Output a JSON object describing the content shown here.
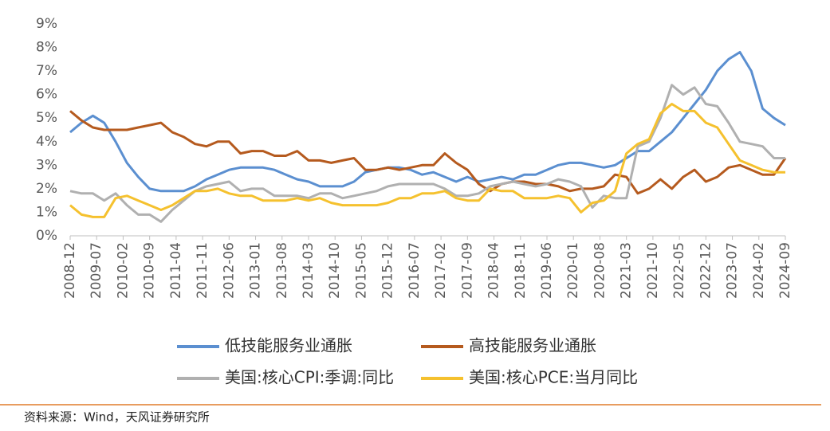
{
  "chart_data": {
    "type": "line",
    "x": [
      "2008-12",
      "2009-03",
      "2009-06",
      "2009-09",
      "2009-12",
      "2010-03",
      "2010-06",
      "2010-09",
      "2010-12",
      "2011-03",
      "2011-06",
      "2011-09",
      "2011-12",
      "2012-03",
      "2012-06",
      "2012-09",
      "2012-12",
      "2013-03",
      "2013-06",
      "2013-09",
      "2013-12",
      "2014-03",
      "2014-06",
      "2014-09",
      "2014-12",
      "2015-03",
      "2015-06",
      "2015-09",
      "2015-12",
      "2016-03",
      "2016-06",
      "2016-09",
      "2016-12",
      "2017-03",
      "2017-06",
      "2017-09",
      "2017-12",
      "2018-03",
      "2018-06",
      "2018-09",
      "2018-12",
      "2019-03",
      "2019-06",
      "2019-09",
      "2019-12",
      "2020-03",
      "2020-06",
      "2020-09",
      "2020-12",
      "2021-03",
      "2021-06",
      "2021-09",
      "2021-12",
      "2022-03",
      "2022-06",
      "2022-09",
      "2022-12",
      "2023-03",
      "2023-06",
      "2023-09",
      "2023-12",
      "2024-03",
      "2024-06",
      "2024-09"
    ],
    "series": [
      {
        "name": "低技能服务业通胀",
        "color": "#5b8fd0",
        "values": [
          4.4,
          4.8,
          5.1,
          4.8,
          4.0,
          3.1,
          2.5,
          2.0,
          1.9,
          1.9,
          1.9,
          2.1,
          2.4,
          2.6,
          2.8,
          2.9,
          2.9,
          2.9,
          2.8,
          2.6,
          2.4,
          2.3,
          2.1,
          2.1,
          2.1,
          2.3,
          2.7,
          2.8,
          2.9,
          2.9,
          2.8,
          2.6,
          2.7,
          2.5,
          2.3,
          2.5,
          2.3,
          2.4,
          2.5,
          2.4,
          2.6,
          2.6,
          2.8,
          3.0,
          3.1,
          3.1,
          3.0,
          2.9,
          3.0,
          3.3,
          3.6,
          3.6,
          4.0,
          4.4,
          5.0,
          5.6,
          6.2,
          7.0,
          7.5,
          7.8,
          7.0,
          5.4,
          5.0,
          4.7
        ]
      },
      {
        "name": "高技能服务业通胀",
        "color": "#b55a1e",
        "values": [
          5.3,
          4.9,
          4.6,
          4.5,
          4.5,
          4.5,
          4.6,
          4.7,
          4.8,
          4.4,
          4.2,
          3.9,
          3.8,
          4.0,
          4.0,
          3.5,
          3.6,
          3.6,
          3.4,
          3.4,
          3.6,
          3.2,
          3.2,
          3.1,
          3.2,
          3.3,
          2.8,
          2.8,
          2.9,
          2.8,
          2.9,
          3.0,
          3.0,
          3.5,
          3.1,
          2.8,
          2.2,
          1.9,
          2.2,
          2.3,
          2.3,
          2.2,
          2.2,
          2.1,
          1.9,
          2.0,
          2.0,
          2.1,
          2.6,
          2.5,
          1.8,
          2.0,
          2.4,
          2.0,
          2.5,
          2.8,
          2.3,
          2.5,
          2.9,
          3.0,
          2.8,
          2.6,
          2.6,
          3.3
        ]
      },
      {
        "name": "美国:核心CPI:季调:同比",
        "color": "#b0b0b0",
        "values": [
          1.9,
          1.8,
          1.8,
          1.5,
          1.8,
          1.3,
          0.9,
          0.9,
          0.6,
          1.1,
          1.5,
          1.9,
          2.1,
          2.2,
          2.3,
          1.9,
          2.0,
          2.0,
          1.7,
          1.7,
          1.7,
          1.6,
          1.8,
          1.8,
          1.6,
          1.7,
          1.8,
          1.9,
          2.1,
          2.2,
          2.2,
          2.2,
          2.2,
          2.0,
          1.7,
          1.7,
          1.8,
          2.1,
          2.2,
          2.3,
          2.2,
          2.1,
          2.2,
          2.4,
          2.3,
          2.1,
          1.2,
          1.7,
          1.6,
          1.6,
          3.8,
          4.0,
          5.0,
          6.4,
          6.0,
          6.3,
          5.6,
          5.5,
          4.8,
          4.0,
          3.9,
          3.8,
          3.3,
          3.3
        ]
      },
      {
        "name": "美国:核心PCE:当月同比",
        "color": "#f5c12e",
        "values": [
          1.3,
          0.9,
          0.8,
          0.8,
          1.6,
          1.7,
          1.5,
          1.3,
          1.1,
          1.3,
          1.6,
          1.9,
          1.9,
          2.0,
          1.8,
          1.7,
          1.7,
          1.5,
          1.5,
          1.5,
          1.6,
          1.5,
          1.6,
          1.4,
          1.3,
          1.3,
          1.3,
          1.3,
          1.4,
          1.6,
          1.6,
          1.8,
          1.8,
          1.9,
          1.6,
          1.5,
          1.5,
          2.0,
          1.9,
          1.9,
          1.6,
          1.6,
          1.6,
          1.7,
          1.6,
          1.0,
          1.4,
          1.5,
          1.9,
          3.5,
          3.9,
          4.1,
          5.2,
          5.6,
          5.3,
          5.3,
          4.8,
          4.6,
          3.9,
          3.2,
          3.0,
          2.8,
          2.7,
          2.7
        ]
      }
    ],
    "xticks": [
      "2008-12",
      "2009-07",
      "2010-02",
      "2010-09",
      "2011-04",
      "2011-11",
      "2012-06",
      "2013-01",
      "2013-08",
      "2014-03",
      "2014-10",
      "2015-05",
      "2015-12",
      "2016-07",
      "2017-02",
      "2017-09",
      "2018-04",
      "2018-11",
      "2019-06",
      "2020-01",
      "2020-08",
      "2021-03",
      "2021-10",
      "2022-05",
      "2022-12",
      "2023-07",
      "2024-02",
      "2024-09"
    ],
    "ylim": [
      0,
      9
    ],
    "yticks": [
      {
        "value": 0,
        "label": "0%"
      },
      {
        "value": 1,
        "label": "1%"
      },
      {
        "value": 2,
        "label": "2%"
      },
      {
        "value": 3,
        "label": "3%"
      },
      {
        "value": 4,
        "label": "4%"
      },
      {
        "value": 5,
        "label": "5%"
      },
      {
        "value": 6,
        "label": "6%"
      },
      {
        "value": 7,
        "label": "7%"
      },
      {
        "value": 8,
        "label": "8%"
      },
      {
        "value": 9,
        "label": "9%"
      }
    ],
    "grid": false,
    "source": "资料来源：Wind，天风证券研究所"
  }
}
